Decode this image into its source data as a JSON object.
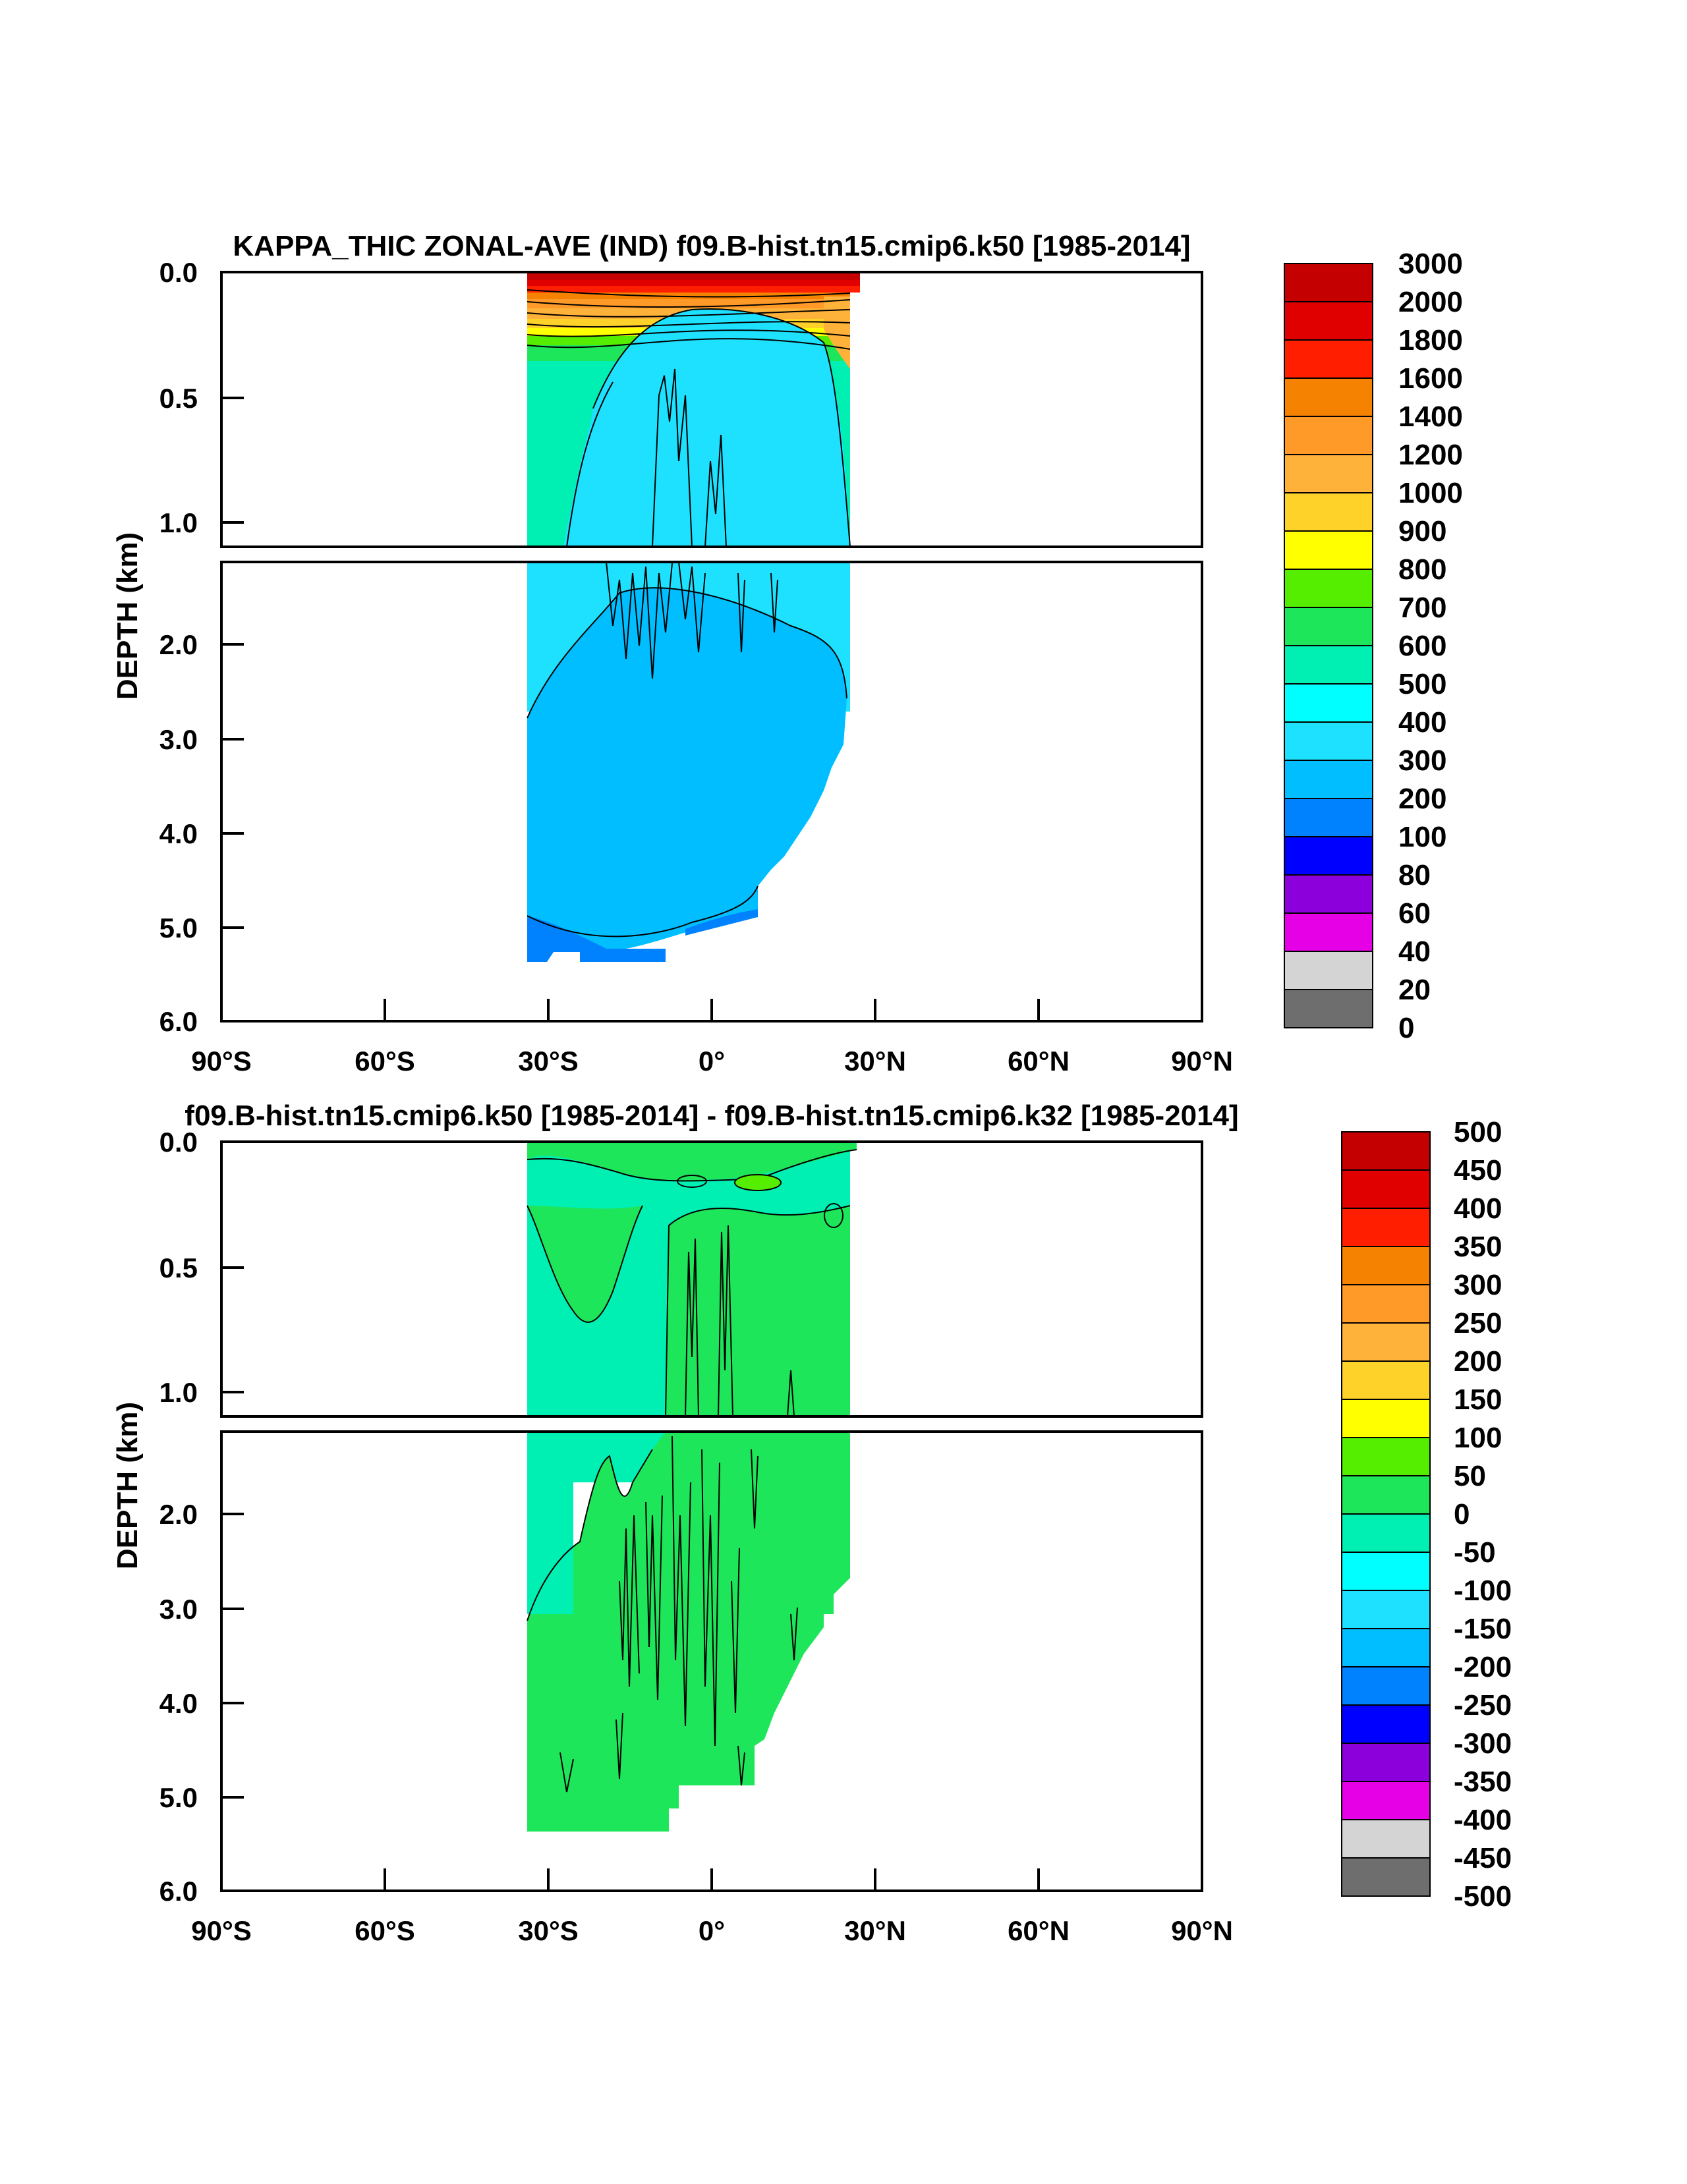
{
  "chart_data": [
    {
      "type": "contour",
      "title": "KAPPA_THIC ZONAL-AVE (IND) f09.B-hist.tn15.cmip6.k50 [1985-2014]",
      "ylabel": "DEPTH (km)",
      "xlabel": "",
      "xlim": [
        -90,
        90
      ],
      "ylim": [
        6.0,
        0.0
      ],
      "y_break": 1.1,
      "x_ticks": [
        "90°S",
        "60°S",
        "30°S",
        "0°",
        "30°N",
        "60°N",
        "90°N"
      ],
      "y_ticks_upper": [
        "0.0",
        "0.5",
        "1.0"
      ],
      "y_ticks_lower": [
        "2.0",
        "3.0",
        "4.0",
        "5.0",
        "6.0"
      ],
      "colorbar_labels": [
        "3000",
        "2000",
        "1800",
        "1600",
        "1400",
        "1200",
        "1000",
        "900",
        "800",
        "700",
        "600",
        "500",
        "400",
        "300",
        "200",
        "100",
        "80",
        "60",
        "40",
        "20",
        "0"
      ],
      "domain_lat": [
        -34,
        25
      ],
      "regions": {
        "surface_max": "3000",
        "upper_interior": "300",
        "deep_interior": "200",
        "bottom": "100"
      }
    },
    {
      "type": "contour",
      "title": "f09.B-hist.tn15.cmip6.k50 [1985-2014] - f09.B-hist.tn15.cmip6.k32 [1985-2014]",
      "ylabel": "DEPTH (km)",
      "xlabel": "",
      "xlim": [
        -90,
        90
      ],
      "ylim": [
        6.0,
        0.0
      ],
      "y_break": 1.1,
      "x_ticks": [
        "90°S",
        "60°S",
        "30°S",
        "0°",
        "30°N",
        "60°N",
        "90°N"
      ],
      "y_ticks_upper": [
        "0.0",
        "0.5",
        "1.0"
      ],
      "y_ticks_lower": [
        "2.0",
        "3.0",
        "4.0",
        "5.0",
        "6.0"
      ],
      "colorbar_labels": [
        "500",
        "450",
        "400",
        "350",
        "300",
        "250",
        "200",
        "150",
        "100",
        "50",
        "0",
        "-50",
        "-100",
        "-150",
        "-200",
        "-250",
        "-300",
        "-350",
        "-400",
        "-450",
        "-500"
      ],
      "domain_lat": [
        -34,
        25
      ],
      "regions": {
        "west_background": "-50",
        "main_interior": "0"
      }
    }
  ],
  "colors": {
    "scale": [
      "#c40000",
      "#e00000",
      "#ff1e00",
      "#f58200",
      "#ff9a28",
      "#ffb23a",
      "#ffd22a",
      "#ffff00",
      "#55ee00",
      "#1ee65a",
      "#00f0b4",
      "#00ffff",
      "#1ee1ff",
      "#00beff",
      "#0082ff",
      "#0000ff",
      "#8c00dc",
      "#e600e6",
      "#d4d4d4",
      "#6e6e6e"
    ]
  }
}
